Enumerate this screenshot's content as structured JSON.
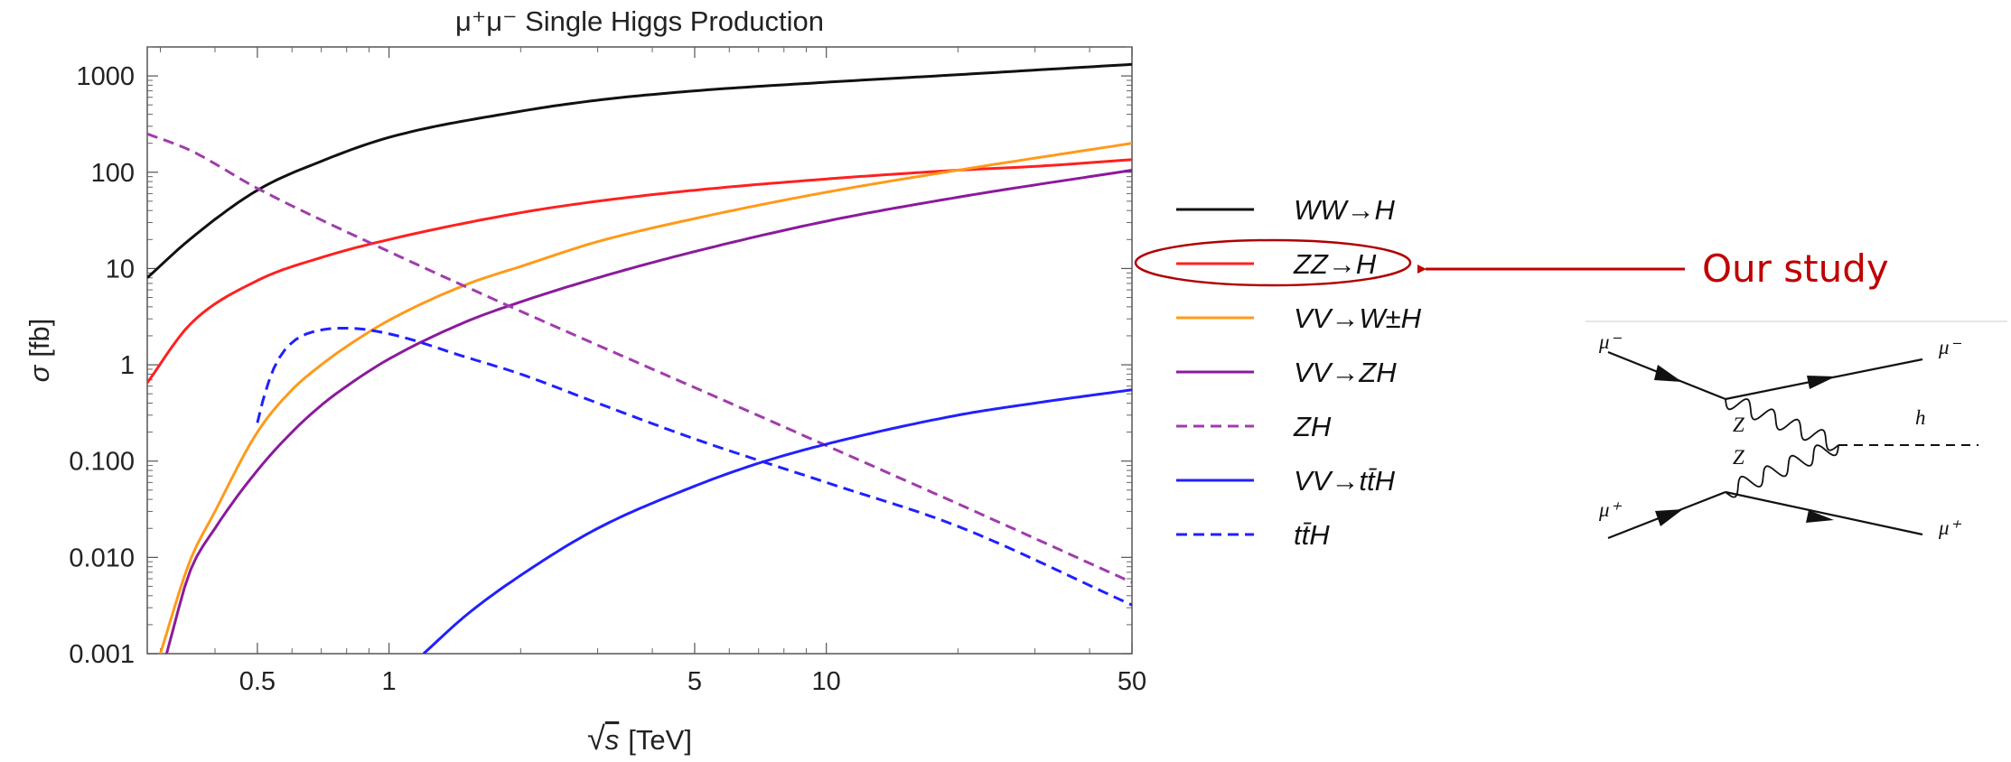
{
  "chart_data": {
    "type": "line",
    "title": "μ⁺μ⁻ Single Higgs Production",
    "xlabel": "√s [TeV]",
    "xlabel_radical": "√",
    "xlabel_var": "s",
    "xlabel_unit": "[TeV]",
    "ylabel": "σ [fb]",
    "ylabel_symbol": "σ",
    "ylabel_unit": "[fb]",
    "x_scale": "log",
    "y_scale": "log",
    "xlim": [
      0.28,
      50
    ],
    "ylim": [
      0.001,
      2000
    ],
    "x_ticks": [
      {
        "value": 0.5,
        "label": "0.5"
      },
      {
        "value": 1,
        "label": "1"
      },
      {
        "value": 5,
        "label": "5"
      },
      {
        "value": 10,
        "label": "10"
      },
      {
        "value": 50,
        "label": "50"
      }
    ],
    "y_ticks": [
      {
        "value": 1000,
        "label": "1000"
      },
      {
        "value": 100,
        "label": "100"
      },
      {
        "value": 10,
        "label": "10"
      },
      {
        "value": 1,
        "label": "1"
      },
      {
        "value": 0.1,
        "label": "0.100"
      },
      {
        "value": 0.01,
        "label": "0.010"
      },
      {
        "value": 0.001,
        "label": "0.001"
      }
    ],
    "grid": false,
    "legend_position": "right",
    "series": [
      {
        "name": "WW→H",
        "color": "#111111",
        "dash": "solid",
        "x": [
          0.28,
          0.35,
          0.5,
          0.7,
          1,
          2,
          3,
          5,
          10,
          20,
          30,
          50
        ],
        "y": [
          8,
          20,
          65,
          130,
          230,
          430,
          560,
          700,
          860,
          1030,
          1150,
          1320
        ]
      },
      {
        "name": "ZZ→H",
        "color": "#ff2020",
        "dash": "solid",
        "x": [
          0.28,
          0.35,
          0.5,
          0.7,
          1,
          2,
          3,
          5,
          10,
          20,
          30,
          50
        ],
        "y": [
          0.65,
          2.6,
          7.5,
          13,
          20,
          38,
          50,
          65,
          85,
          105,
          115,
          135
        ]
      },
      {
        "name": "VV→W±H",
        "color": "#ff9a1a",
        "dash": "solid",
        "x": [
          0.3,
          0.35,
          0.4,
          0.5,
          0.6,
          0.7,
          0.8,
          1,
          1.5,
          2,
          3,
          5,
          10,
          20,
          50
        ],
        "y": [
          0.001,
          0.009,
          0.03,
          0.2,
          0.55,
          1.0,
          1.55,
          2.9,
          6.8,
          10.5,
          19,
          33,
          62,
          105,
          200
        ]
      },
      {
        "name": "VV→ZH",
        "color": "#8b1a9c",
        "dash": "solid",
        "x": [
          0.31,
          0.35,
          0.4,
          0.5,
          0.6,
          0.7,
          0.8,
          1,
          1.5,
          2,
          3,
          5,
          10,
          20,
          50
        ],
        "y": [
          0.001,
          0.007,
          0.02,
          0.08,
          0.2,
          0.38,
          0.6,
          1.15,
          2.8,
          4.5,
          8,
          15,
          31,
          55,
          105
        ]
      },
      {
        "name": "ZH",
        "color": "#a03cac",
        "dash": "dashed",
        "x": [
          0.28,
          0.35,
          0.5,
          1,
          2,
          5,
          10,
          20,
          50
        ],
        "y": [
          250,
          170,
          68,
          15,
          3.6,
          0.58,
          0.145,
          0.036,
          0.0055
        ]
      },
      {
        "name": "VV→tt̄H",
        "color": "#2020ff",
        "dash": "solid",
        "x": [
          1.2,
          1.5,
          2,
          3,
          5,
          7,
          10,
          20,
          30,
          50
        ],
        "y": [
          0.001,
          0.0025,
          0.0065,
          0.02,
          0.055,
          0.095,
          0.15,
          0.3,
          0.4,
          0.55
        ]
      },
      {
        "name": "tt̄H",
        "color": "#2020ff",
        "dash": "dashed",
        "x": [
          0.5,
          0.52,
          0.55,
          0.6,
          0.7,
          0.8,
          1,
          1.5,
          2,
          3,
          5,
          10,
          20,
          50
        ],
        "y": [
          0.25,
          0.5,
          1.0,
          1.7,
          2.3,
          2.4,
          2.1,
          1.2,
          0.8,
          0.4,
          0.17,
          0.06,
          0.021,
          0.0032
        ]
      }
    ]
  },
  "annotation": {
    "text": "Our study",
    "color": "#c00000",
    "highlighted_series": "ZZ→H"
  },
  "diagram": {
    "labels": {
      "mu_minus_in": "μ⁻",
      "mu_minus_out": "μ⁻",
      "mu_plus_in": "μ⁺",
      "mu_plus_out": "μ⁺",
      "z_top": "Z",
      "z_bottom": "Z",
      "higgs": "h"
    }
  }
}
